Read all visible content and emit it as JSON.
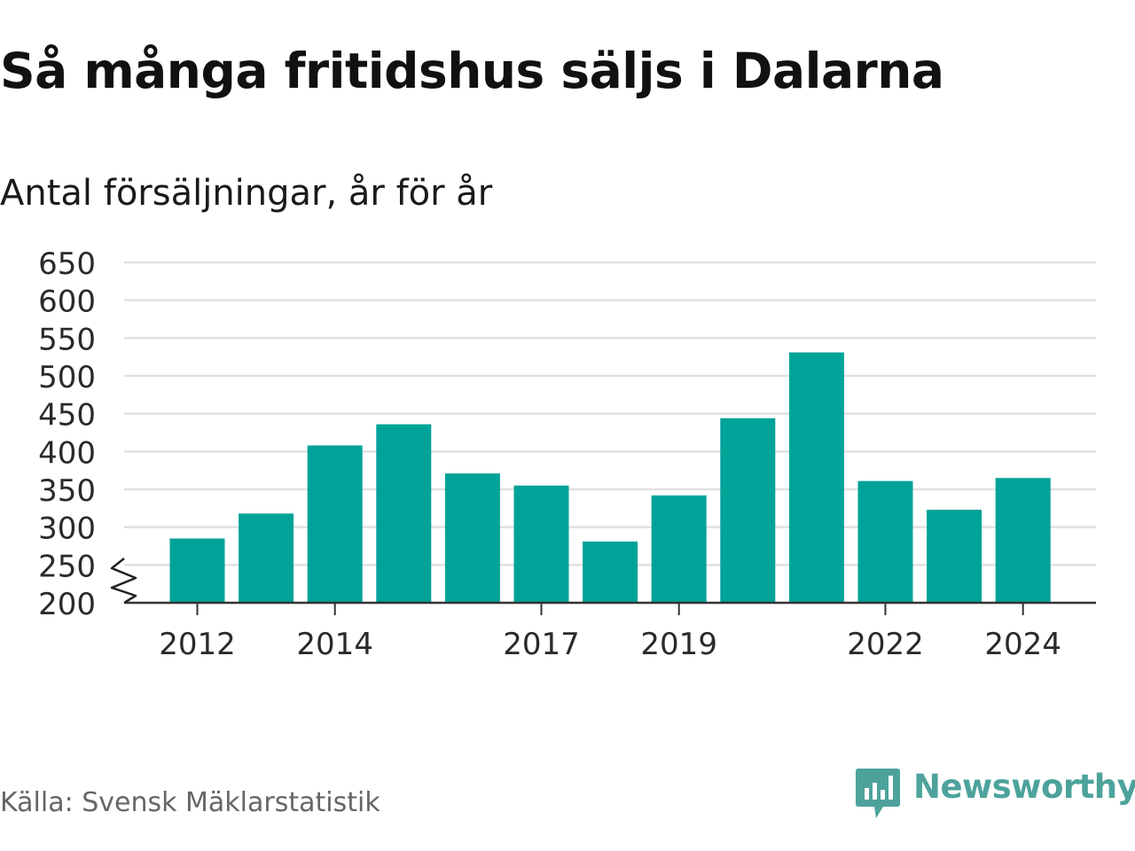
{
  "header": {
    "title": "Så många fritidshus säljs i Dalarna",
    "subtitle": "Antal försäljningar, år för år"
  },
  "footer": {
    "source": "Källa: Svensk Mäklarstatistik",
    "brand": "Newsworthy"
  },
  "colors": {
    "bar": "#00a398",
    "brand": "#4da39c",
    "gridline": "#e0e0e0",
    "axis": "#333333"
  },
  "chart_data": {
    "type": "bar",
    "title": "Så många fritidshus säljs i Dalarna",
    "subtitle": "Antal försäljningar, år för år",
    "xlabel": "",
    "ylabel": "",
    "categories": [
      "2012",
      "2013",
      "2014",
      "2015",
      "2016",
      "2017",
      "2018",
      "2019",
      "2020",
      "2021",
      "2022",
      "2023",
      "2024"
    ],
    "x_tick_labels": [
      "2012",
      "2014",
      "2017",
      "2019",
      "2022",
      "2024"
    ],
    "values": [
      285,
      318,
      408,
      436,
      371,
      355,
      281,
      342,
      444,
      531,
      361,
      323,
      365
    ],
    "ylim": [
      200,
      650
    ],
    "y_ticks": [
      200,
      250,
      300,
      350,
      400,
      450,
      500,
      550,
      600,
      650
    ],
    "y_axis_break": true,
    "grid": true,
    "legend": "none"
  }
}
